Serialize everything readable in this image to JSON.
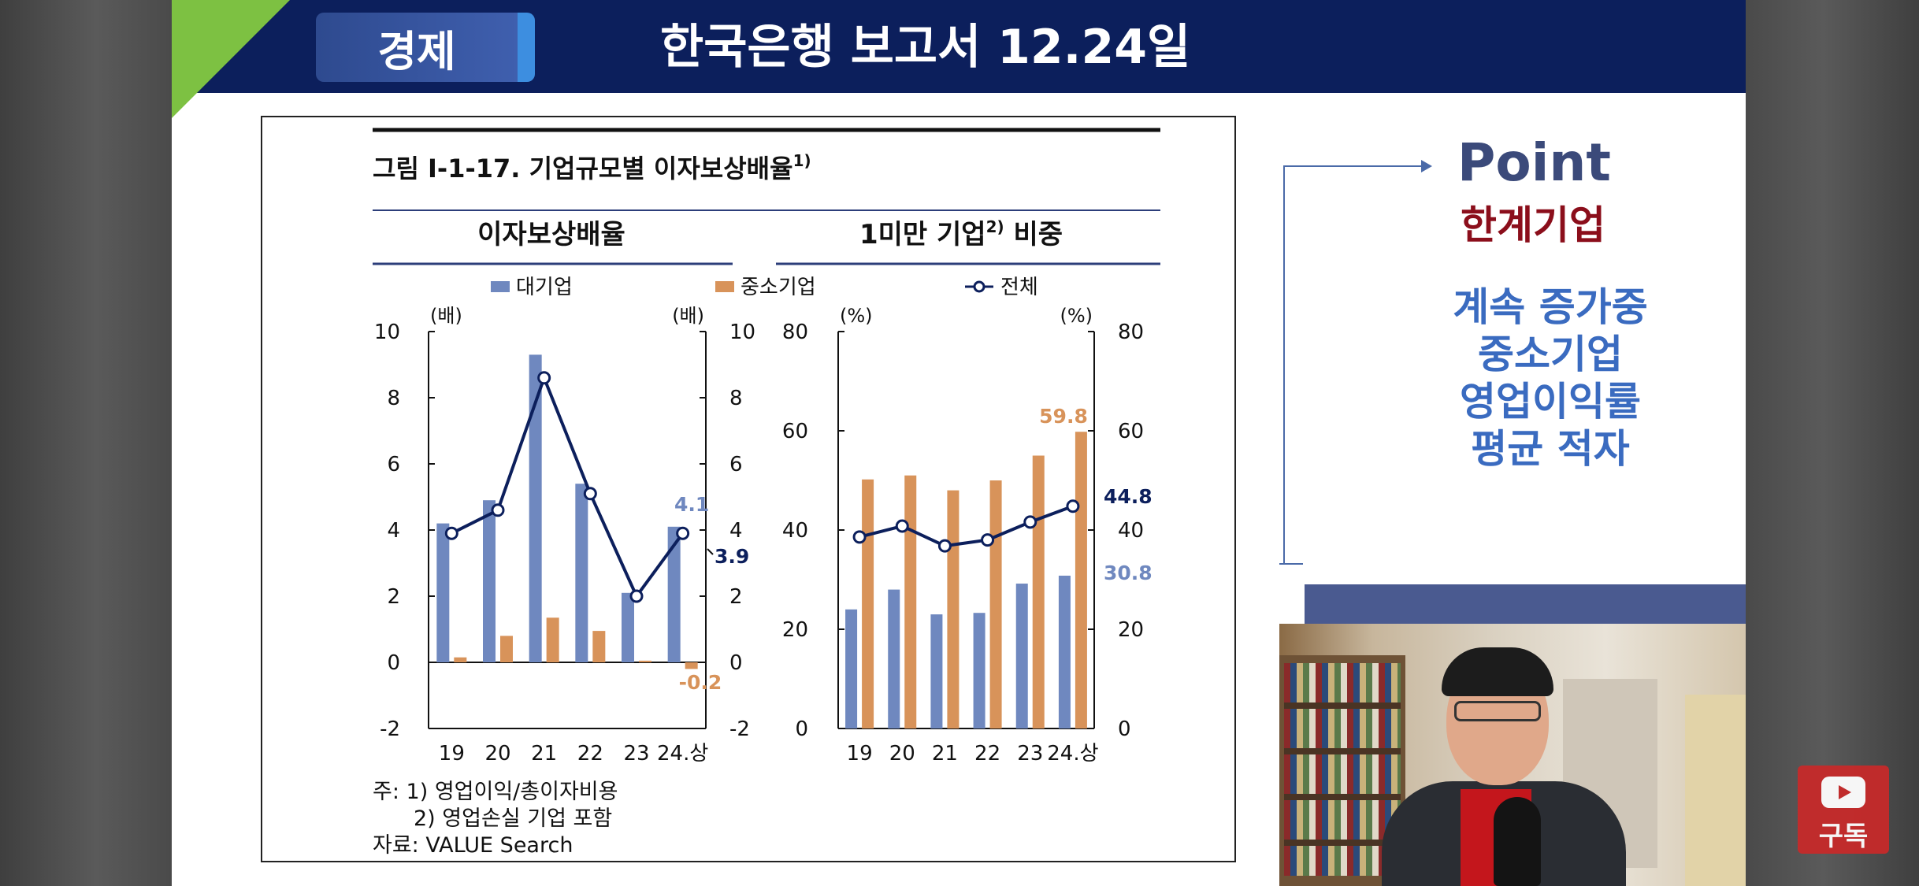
{
  "header": {
    "tag": "경제",
    "title": "한국은행 보고서 12.24일"
  },
  "figure": {
    "title": "그림  Ⅰ-1-17. 기업규모별 이자보상배율",
    "title_sup": "1)",
    "left_panel_title": "이자보상배율",
    "right_panel_title_pre": "1미만 기업",
    "right_panel_title_sup": "2)",
    "right_panel_title_post": " 비중",
    "legend": [
      "대기업",
      "중소기업",
      "전체"
    ],
    "unit_left": "(배)",
    "unit_right": "(%)",
    "notes": [
      "주: 1) 영업이익/총이자비용",
      "2) 영업손실 기업 포함",
      "자료: VALUE Search"
    ]
  },
  "chart_data": [
    {
      "type": "bar",
      "title": "이자보상배율",
      "categories": [
        "19",
        "20",
        "21",
        "22",
        "23",
        "24.상"
      ],
      "ylabel": "(배)",
      "ylim": [
        -2,
        10
      ],
      "yticks": [
        -2,
        0,
        2,
        4,
        6,
        8,
        10
      ],
      "series": [
        {
          "name": "대기업",
          "kind": "bar",
          "color": "#6f88bf",
          "values": [
            4.2,
            4.9,
            9.3,
            5.4,
            2.1,
            4.1
          ]
        },
        {
          "name": "중소기업",
          "kind": "bar",
          "color": "#d8935a",
          "values": [
            0.15,
            0.8,
            1.35,
            0.95,
            0.05,
            -0.2
          ]
        },
        {
          "name": "전체",
          "kind": "line",
          "color": "#0c1f5c",
          "values": [
            3.9,
            4.6,
            8.6,
            5.1,
            2.0,
            3.9
          ]
        }
      ],
      "data_labels": [
        {
          "text": "4.1",
          "series": "대기업",
          "index": 5
        },
        {
          "text": "3.9",
          "series": "전체",
          "index": 5
        },
        {
          "text": "-0.2",
          "series": "중소기업",
          "index": 5
        }
      ]
    },
    {
      "type": "bar",
      "title": "1미만 기업 비중",
      "categories": [
        "19",
        "20",
        "21",
        "22",
        "23",
        "24.상"
      ],
      "ylabel": "(%)",
      "ylim": [
        0,
        80
      ],
      "yticks": [
        0,
        20,
        40,
        60,
        80
      ],
      "series": [
        {
          "name": "대기업",
          "kind": "bar",
          "color": "#6f88bf",
          "values": [
            24,
            28,
            23,
            23.3,
            29.2,
            30.8
          ]
        },
        {
          "name": "중소기업",
          "kind": "bar",
          "color": "#d8935a",
          "values": [
            50.2,
            51,
            48,
            50,
            55,
            59.8
          ]
        },
        {
          "name": "전체",
          "kind": "line",
          "color": "#0c1f5c",
          "values": [
            38.6,
            40.8,
            36.8,
            38,
            41.6,
            44.8
          ]
        }
      ],
      "data_labels": [
        {
          "text": "59.8",
          "series": "중소기업",
          "index": 5
        },
        {
          "text": "44.8",
          "series": "전체",
          "index": 5
        },
        {
          "text": "30.8",
          "series": "대기업",
          "index": 5
        }
      ]
    }
  ],
  "point": {
    "title": "Point",
    "subtitle": "한계기업",
    "lines": [
      "계속 증가중",
      "중소기업",
      "영업이익률",
      "평균 적자"
    ]
  },
  "subscribe": {
    "label": "구독"
  }
}
